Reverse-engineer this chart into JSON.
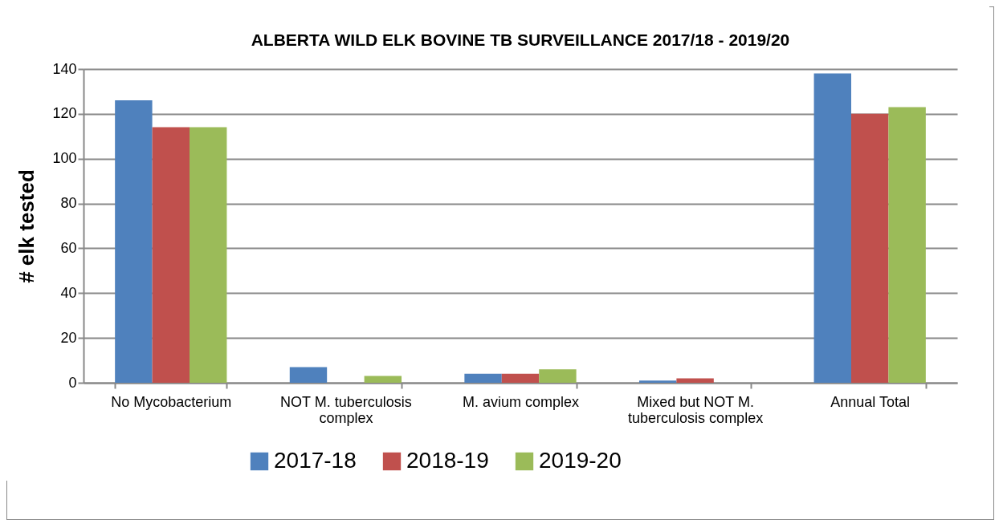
{
  "chart_data": {
    "type": "bar",
    "title": "ALBERTA WILD ELK BOVINE TB SURVEILLANCE 2017/18 - 2019/20",
    "ylabel": "# elk tested",
    "categories": [
      "No Mycobacterium",
      "NOT M. tuberculosis complex",
      "M. avium complex",
      "Mixed but NOT M. tuberculosis complex",
      "Annual Total"
    ],
    "series": [
      {
        "name": "2017-18",
        "color": "#4f81bd",
        "values": [
          126,
          7,
          4,
          1,
          138
        ]
      },
      {
        "name": "2018-19",
        "color": "#c0504d",
        "values": [
          114,
          0,
          4,
          2,
          120
        ]
      },
      {
        "name": "2019-20",
        "color": "#9bbb59",
        "values": [
          114,
          3,
          6,
          0,
          123
        ]
      }
    ],
    "ylim": [
      0,
      140
    ],
    "yticks": [
      0,
      20,
      40,
      60,
      80,
      100,
      120,
      140
    ],
    "grid": "y",
    "legend": "bottom"
  }
}
